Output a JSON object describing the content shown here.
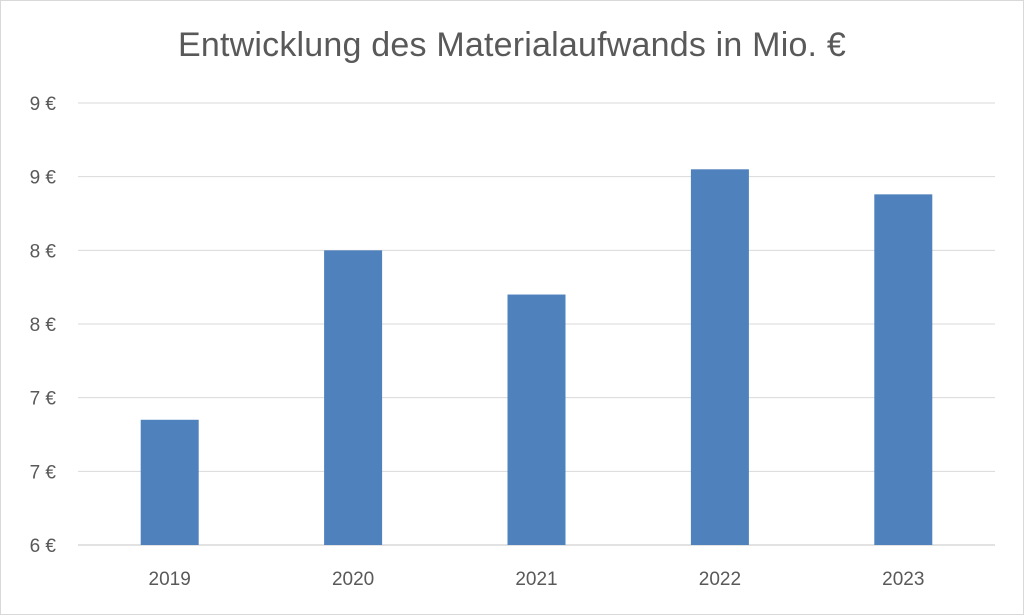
{
  "chart_data": {
    "type": "bar",
    "title": "Entwicklung des Materialaufwands in Mio. €",
    "xlabel": "",
    "ylabel": "",
    "categories": [
      "2019",
      "2020",
      "2021",
      "2022",
      "2023"
    ],
    "values": [
      6.85,
      8.0,
      7.7,
      8.55,
      8.38
    ],
    "ylim": [
      6.0,
      9.0
    ],
    "y_ticks": [
      6.0,
      6.5,
      7.0,
      7.5,
      8.0,
      8.5,
      9.0
    ],
    "y_tick_labels": [
      "6 €",
      "7 €",
      "7 €",
      "8 €",
      "8 €",
      "9 €",
      "9 €"
    ],
    "grid": true,
    "legend": "none",
    "colors": {
      "bar": "#4f81bd",
      "grid": "#d9d9d9",
      "text": "#595959"
    }
  }
}
